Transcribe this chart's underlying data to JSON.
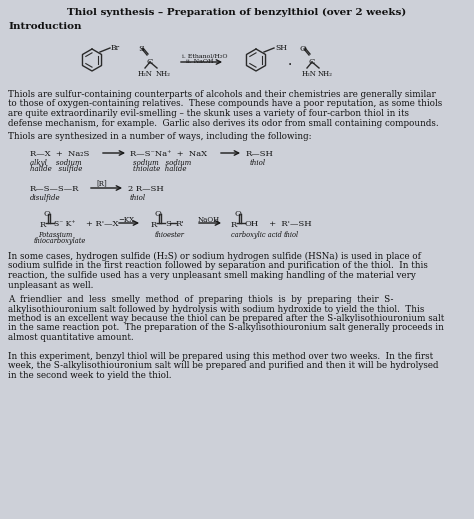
{
  "title": "Thiol synthesis – Preparation of benzylthiol (over 2 weeks)",
  "background_color": "#cdd0d8",
  "text_color": "#1a1a1a",
  "intro_heading": "Introduction",
  "para1": "Thiols are sulfur-containing counterparts of alcohols and their chemistries are generally similar\nto those of oxygen-containing relatives.  These compounds have a poor reputation, as some thiols\nare quite extraordinarily evil-smelling – the skunk uses a variety of four-carbon thiol in its\ndefense mechanism, for example.  Garlic also derives its odor from small containing compounds.",
  "para2": "Thiols are synthesized in a number of ways, including the following:",
  "para3": "In some cases, hydrogen sulfide (H₂S) or sodium hydrogen sulfide (HSNa) is used in place of\nsodium sulfide in the first reaction followed by separation and purification of the thiol.  In this\nreaction, the sulfide used has a very unpleasant smell making handling of the material very\nunpleasant as well.",
  "para4": "A  friendlier  and  less  smelly  method  of  preparing  thiols  is  by  preparing  their  S-\nalkylisothiouronium salt followed by hydrolysis with sodium hydroxide to yield the thiol.  This\nmethod is an excellent way because the thiol can be prepared after the S-alkylisothiouronium salt\nin the same reaction pot.  The preparation of the S-alkylisothiouronium salt generally proceeds in\nalmost quantitative amount.",
  "para5": "In this experiment, benzyl thiol will be prepared using this method over two weeks.  In the first\nweek, the S-alkylisothiouronium salt will be prepared and purified and then it will be hydrolysed\nin the second week to yield the thiol."
}
